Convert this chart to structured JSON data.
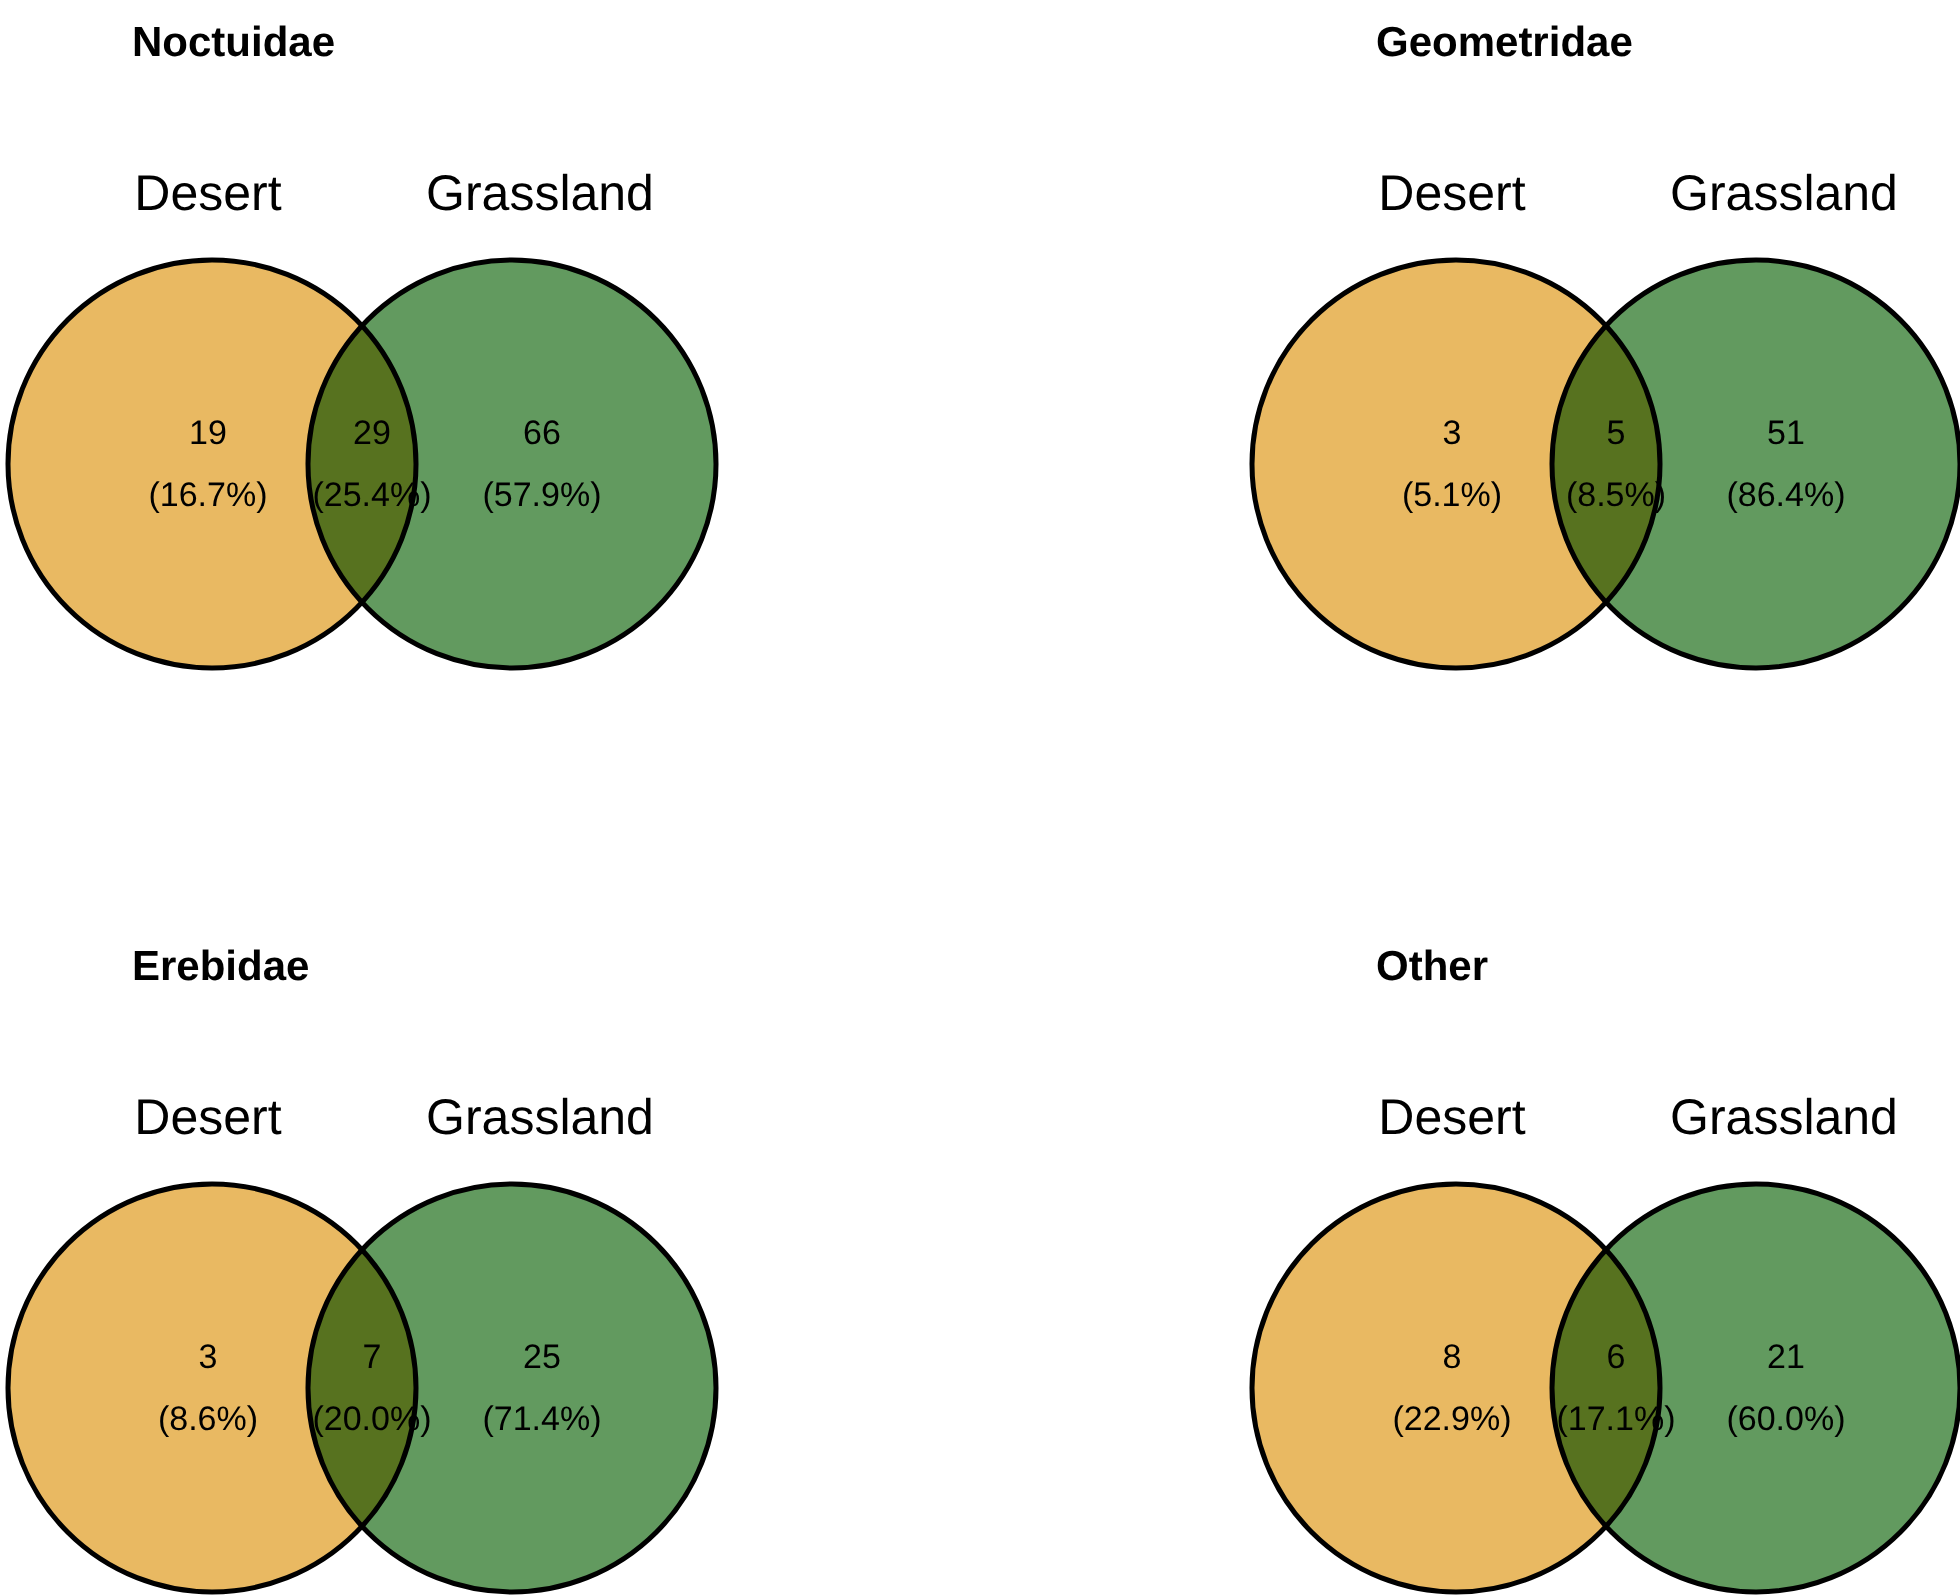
{
  "chart_data": [
    {
      "type": "other",
      "title": "Noctuidae",
      "categories": [
        null,
        null,
        null
      ],
      "values": [
        19,
        29,
        66
      ],
      "data_labels": true,
      "colors": [
        "#e9b962",
        "#57721f",
        "#629a5f"
      ],
      "annotations": [
        "Desert",
        "Grassland",
        "(16.7%)",
        "(25.4%)",
        "(57.9%)"
      ]
    },
    {
      "type": "other",
      "title": "Geometridae",
      "categories": [
        null,
        null,
        null
      ],
      "values": [
        3,
        5,
        51
      ],
      "data_labels": true,
      "colors": [
        "#e9b962",
        "#57721f",
        "#629a5f"
      ],
      "annotations": [
        "Desert",
        "Grassland",
        "(5.1%)",
        "(8.5%)",
        "(86.4%)"
      ]
    },
    {
      "type": "other",
      "title": "Erebidae",
      "categories": [
        null,
        null,
        null
      ],
      "values": [
        3,
        7,
        25
      ],
      "data_labels": true,
      "colors": [
        "#e9b962",
        "#57721f",
        "#629a5f"
      ],
      "annotations": [
        "Desert",
        "Grassland",
        "(8.6%)",
        "(20.0%)",
        "(71.4%)"
      ]
    },
    {
      "type": "other",
      "title": "Other",
      "categories": [
        null,
        null,
        null
      ],
      "values": [
        8,
        6,
        21
      ],
      "data_labels": true,
      "colors": [
        "#e9b962",
        "#57721f",
        "#629a5f"
      ],
      "annotations": [
        "Desert",
        "Grassland",
        "(22.9%)",
        "(17.1%)",
        "(60.0%)"
      ]
    }
  ]
}
